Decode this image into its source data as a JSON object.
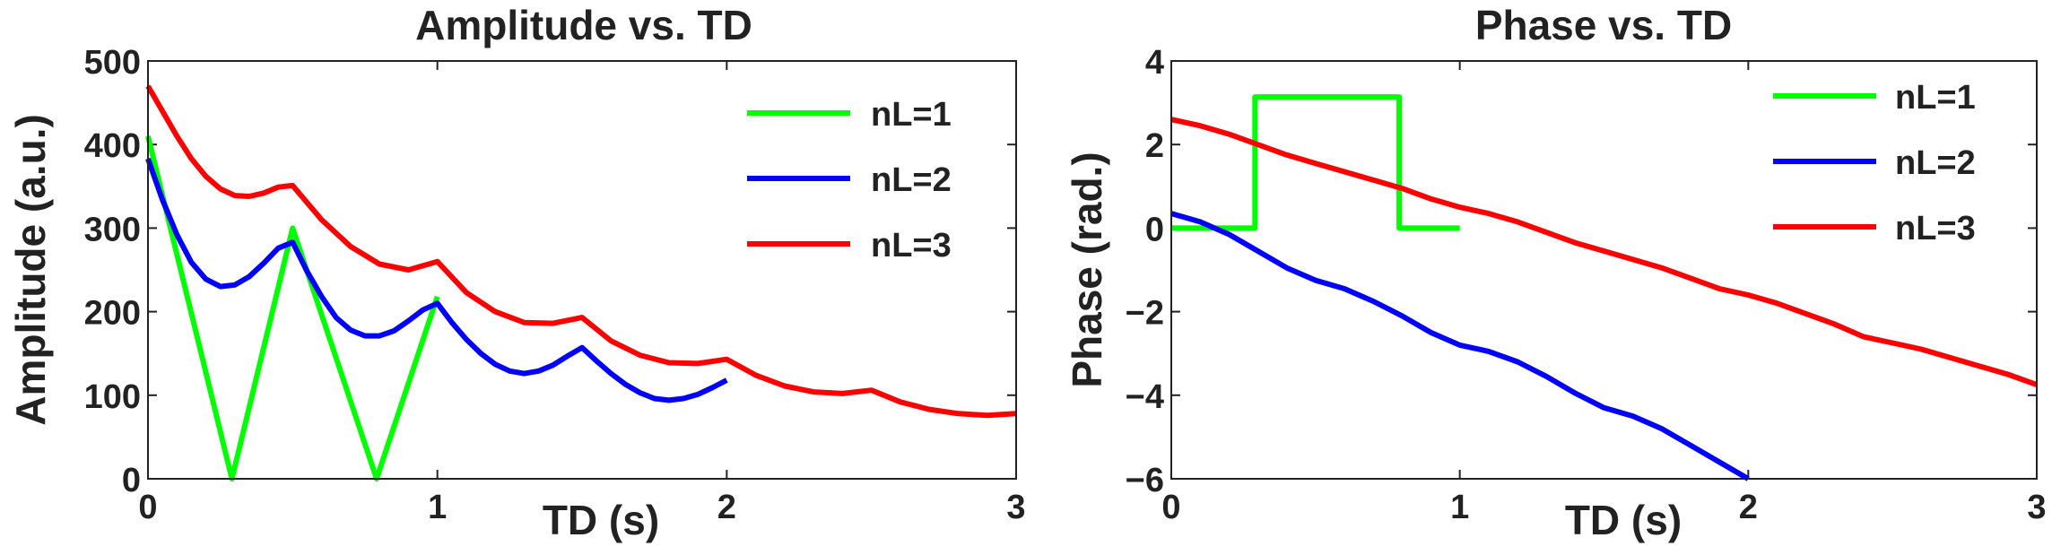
{
  "chart_data": [
    {
      "type": "line",
      "title": "Amplitude vs. TD",
      "xlabel": "TD (s)",
      "ylabel": "Amplitude (a.u.)",
      "xlim": [
        0,
        3
      ],
      "ylim": [
        0,
        500
      ],
      "xticks": [
        "0",
        "1",
        "2",
        "3"
      ],
      "yticks": [
        "0",
        "100",
        "200",
        "300",
        "400",
        "500"
      ],
      "grid": false,
      "legend_position": "top-right",
      "series": [
        {
          "name": "nL=1",
          "color": "#00ff00",
          "x": [
            0,
            0.29,
            0.5,
            0.79,
            1.0
          ],
          "y": [
            410,
            0,
            300,
            0,
            218
          ]
        },
        {
          "name": "nL=2",
          "color": "#0000ff",
          "x": [
            0,
            0.05,
            0.1,
            0.15,
            0.2,
            0.25,
            0.3,
            0.35,
            0.4,
            0.45,
            0.5,
            0.55,
            0.6,
            0.65,
            0.7,
            0.75,
            0.8,
            0.85,
            0.9,
            0.95,
            1.0,
            1.05,
            1.1,
            1.15,
            1.2,
            1.25,
            1.3,
            1.35,
            1.4,
            1.45,
            1.5,
            1.55,
            1.6,
            1.65,
            1.7,
            1.75,
            1.8,
            1.85,
            1.9,
            1.95,
            2.0
          ],
          "y": [
            383,
            334,
            292,
            259,
            239,
            230,
            232,
            242,
            258,
            276,
            283,
            248,
            218,
            193,
            178,
            171,
            171,
            177,
            189,
            202,
            210,
            187,
            167,
            150,
            137,
            129,
            126,
            129,
            136,
            147,
            157,
            141,
            126,
            113,
            103,
            96,
            94,
            96,
            101,
            109,
            118
          ]
        },
        {
          "name": "nL=3",
          "color": "#ff0000",
          "x": [
            0,
            0.05,
            0.1,
            0.15,
            0.2,
            0.25,
            0.3,
            0.35,
            0.4,
            0.45,
            0.5,
            0.6,
            0.7,
            0.8,
            0.9,
            1.0,
            1.1,
            1.2,
            1.3,
            1.4,
            1.5,
            1.6,
            1.7,
            1.8,
            1.9,
            2.0,
            2.1,
            2.2,
            2.3,
            2.4,
            2.5,
            2.6,
            2.7,
            2.8,
            2.9,
            3.0
          ],
          "y": [
            470,
            440,
            410,
            383,
            362,
            347,
            339,
            338,
            342,
            349,
            351,
            310,
            278,
            257,
            250,
            260,
            223,
            200,
            187,
            186,
            193,
            165,
            148,
            139,
            138,
            143,
            124,
            111,
            104,
            102,
            106,
            92,
            83,
            78,
            76,
            78
          ]
        }
      ]
    },
    {
      "type": "line",
      "title": "Phase vs. TD",
      "xlabel": "TD (s)",
      "ylabel": "Phase (rad.)",
      "xlim": [
        0,
        3
      ],
      "ylim": [
        -6,
        4
      ],
      "xticks": [
        "0",
        "1",
        "2",
        "3"
      ],
      "yticks": [
        "−6",
        "−4",
        "−2",
        "0",
        "2",
        "4"
      ],
      "grid": false,
      "legend_position": "top-right",
      "series": [
        {
          "name": "nL=1",
          "color": "#00ff00",
          "x": [
            0,
            0.29,
            0.29,
            0.79,
            0.79,
            1.0
          ],
          "y": [
            0,
            0,
            3.14,
            3.14,
            0,
            0
          ]
        },
        {
          "name": "nL=2",
          "color": "#0000ff",
          "x": [
            0,
            0.1,
            0.2,
            0.3,
            0.4,
            0.5,
            0.6,
            0.7,
            0.8,
            0.9,
            1.0,
            1.1,
            1.2,
            1.3,
            1.4,
            1.5,
            1.6,
            1.7,
            1.8,
            1.9,
            2.0
          ],
          "y": [
            0.35,
            0.15,
            -0.15,
            -0.55,
            -0.95,
            -1.25,
            -1.45,
            -1.75,
            -2.1,
            -2.5,
            -2.8,
            -2.95,
            -3.2,
            -3.55,
            -3.95,
            -4.3,
            -4.5,
            -4.8,
            -5.2,
            -5.6,
            -6.0
          ]
        },
        {
          "name": "nL=3",
          "color": "#ff0000",
          "x": [
            0,
            0.1,
            0.2,
            0.3,
            0.4,
            0.5,
            0.6,
            0.7,
            0.8,
            0.9,
            1.0,
            1.1,
            1.2,
            1.3,
            1.4,
            1.5,
            1.6,
            1.7,
            1.8,
            1.9,
            2.0,
            2.1,
            2.2,
            2.3,
            2.4,
            2.5,
            2.6,
            2.7,
            2.8,
            2.9,
            3.0
          ],
          "y": [
            2.6,
            2.45,
            2.25,
            2.0,
            1.75,
            1.55,
            1.35,
            1.15,
            0.95,
            0.7,
            0.5,
            0.35,
            0.15,
            -0.1,
            -0.35,
            -0.55,
            -0.75,
            -0.95,
            -1.2,
            -1.45,
            -1.6,
            -1.8,
            -2.05,
            -2.3,
            -2.6,
            -2.75,
            -2.9,
            -3.1,
            -3.3,
            -3.5,
            -3.75
          ]
        }
      ]
    }
  ]
}
